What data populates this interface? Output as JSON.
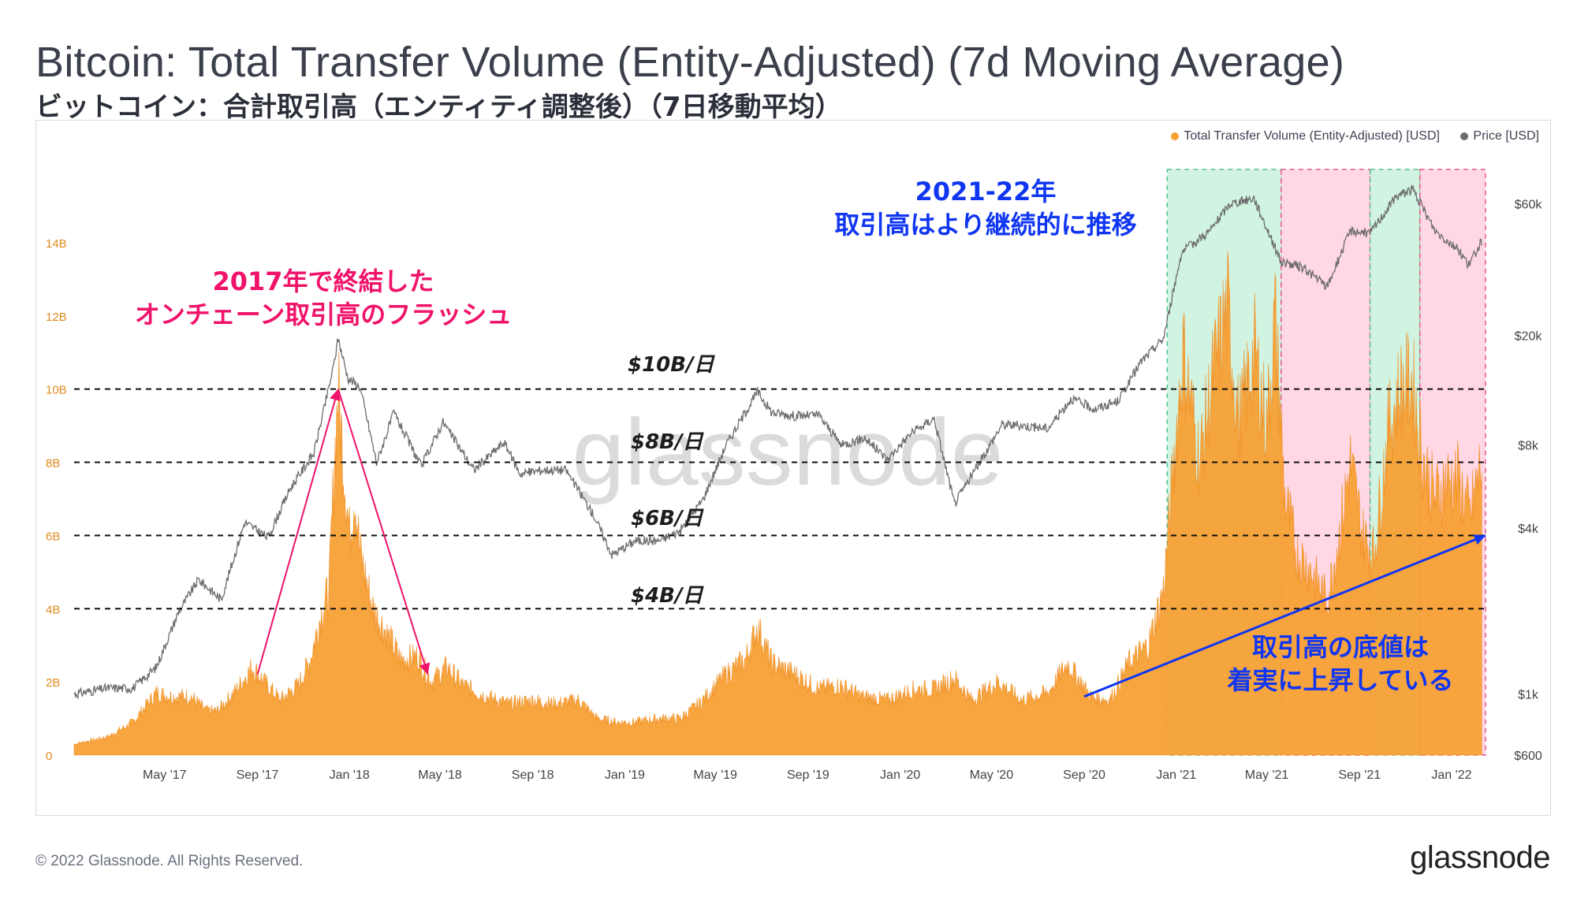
{
  "title": "Bitcoin: Total Transfer Volume (Entity-Adjusted) (7d Moving Average)",
  "subtitle": "ビットコイン：合計取引高（エンティティ調整後）（7日移動平均）",
  "legend": {
    "volume": "Total Transfer Volume (Entity-Adjusted) [USD]",
    "price": "Price [USD]"
  },
  "colors": {
    "volume": "#f7a035",
    "volume_highlight": "#f7862e",
    "price": "#6d6d6d",
    "green_band": "#c9f2dd",
    "pink_band": "#ffd0e0",
    "red_annotation": "#f0136a",
    "blue_annotation": "#1036f2"
  },
  "watermark": "glassnode",
  "annotations": {
    "flash_line1": "2017年で終結した",
    "flash_line2": "オンチェーン取引高のフラッシュ",
    "sustained_line1": "2021-22年",
    "sustained_line2": "取引高はより継続的に推移",
    "floor_line1": "取引高の底値は",
    "floor_line2": "着実に上昇している"
  },
  "levels": [
    {
      "value": 10,
      "label": "$10B/日"
    },
    {
      "value": 8,
      "label": "$8B/日"
    },
    {
      "value": 6,
      "label": "$6B/日"
    },
    {
      "value": 4,
      "label": "$4B/日"
    }
  ],
  "footer": {
    "copyright": "© 2022 Glassnode. All Rights Reserved.",
    "logo": "glassnode"
  },
  "chart_data": {
    "type": "area",
    "title": "Bitcoin: Total Transfer Volume (Entity-Adjusted) (7d Moving Average)",
    "x_range": [
      "2017-01-01",
      "2022-02-15"
    ],
    "x_ticks": [
      "May '17",
      "Sep '17",
      "Jan '18",
      "May '18",
      "Sep '18",
      "Jan '19",
      "May '19",
      "Sep '19",
      "Jan '20",
      "May '20",
      "Sep '20",
      "Jan '21",
      "May '21",
      "Sep '21",
      "Jan '22"
    ],
    "y_left": {
      "unit": "USD",
      "ticks": [
        "0",
        "2B",
        "4B",
        "6B",
        "8B",
        "10B",
        "12B",
        "14B"
      ],
      "range": [
        0,
        16
      ]
    },
    "y_right": {
      "unit": "USD",
      "scale": "log",
      "ticks": [
        "$600",
        "$1k",
        "$4k",
        "$8k",
        "$20k",
        "$60k"
      ],
      "range": [
        600,
        80000
      ]
    },
    "series": [
      {
        "name": "Total Transfer Volume (Entity-Adjusted) [USD]",
        "axis": "left",
        "units": "billion USD",
        "points": [
          [
            "2017-01-01",
            0.3
          ],
          [
            "2017-02-15",
            0.5
          ],
          [
            "2017-03-20",
            0.9
          ],
          [
            "2017-04-20",
            1.7
          ],
          [
            "2017-05-10",
            1.6
          ],
          [
            "2017-06-05",
            1.6
          ],
          [
            "2017-06-25",
            1.2
          ],
          [
            "2017-07-10",
            1.2
          ],
          [
            "2017-08-05",
            1.8
          ],
          [
            "2017-08-25",
            2.4
          ],
          [
            "2017-09-10",
            2.0
          ],
          [
            "2017-10-01",
            1.5
          ],
          [
            "2017-10-25",
            1.9
          ],
          [
            "2017-11-10",
            2.6
          ],
          [
            "2017-11-25",
            3.9
          ],
          [
            "2017-12-05",
            4.5
          ],
          [
            "2017-12-12",
            8.0
          ],
          [
            "2017-12-17",
            10.0
          ],
          [
            "2017-12-24",
            8.0
          ],
          [
            "2018-01-01",
            6.0
          ],
          [
            "2018-01-08",
            7.2
          ],
          [
            "2018-01-15",
            5.5
          ],
          [
            "2018-02-01",
            4.0
          ],
          [
            "2018-02-20",
            3.3
          ],
          [
            "2018-03-10",
            2.6
          ],
          [
            "2018-04-01",
            2.7
          ],
          [
            "2018-04-20",
            2.0
          ],
          [
            "2018-05-10",
            2.4
          ],
          [
            "2018-06-01",
            1.9
          ],
          [
            "2018-07-01",
            1.6
          ],
          [
            "2018-08-01",
            1.4
          ],
          [
            "2018-09-01",
            1.5
          ],
          [
            "2018-10-01",
            1.4
          ],
          [
            "2018-11-01",
            1.5
          ],
          [
            "2018-11-25",
            1.0
          ],
          [
            "2018-12-20",
            0.9
          ],
          [
            "2019-01-15",
            0.9
          ],
          [
            "2019-02-15",
            1.0
          ],
          [
            "2019-03-15",
            1.0
          ],
          [
            "2019-04-10",
            1.4
          ],
          [
            "2019-05-15",
            2.2
          ],
          [
            "2019-06-10",
            2.6
          ],
          [
            "2019-06-26",
            3.5
          ],
          [
            "2019-07-15",
            2.5
          ],
          [
            "2019-08-15",
            2.2
          ],
          [
            "2019-09-15",
            1.8
          ],
          [
            "2019-10-15",
            1.9
          ],
          [
            "2019-11-10",
            1.6
          ],
          [
            "2019-12-15",
            1.5
          ],
          [
            "2020-01-20",
            1.8
          ],
          [
            "2020-02-15",
            1.8
          ],
          [
            "2020-03-13",
            2.1
          ],
          [
            "2020-04-05",
            1.5
          ],
          [
            "2020-05-10",
            2.0
          ],
          [
            "2020-06-10",
            1.5
          ],
          [
            "2020-07-15",
            1.7
          ],
          [
            "2020-08-10",
            2.5
          ],
          [
            "2020-09-10",
            1.6
          ],
          [
            "2020-10-05",
            1.5
          ],
          [
            "2020-10-30",
            2.5
          ],
          [
            "2020-11-25",
            3.0
          ],
          [
            "2020-12-15",
            4.5
          ],
          [
            "2021-01-10",
            11.0
          ],
          [
            "2021-02-01",
            8.0
          ],
          [
            "2021-02-20",
            10.5
          ],
          [
            "2021-03-10",
            12.2
          ],
          [
            "2021-03-25",
            9.0
          ],
          [
            "2021-04-15",
            11.0
          ],
          [
            "2021-05-01",
            9.0
          ],
          [
            "2021-05-12",
            12.0
          ],
          [
            "2021-05-25",
            7.0
          ],
          [
            "2021-06-10",
            5.5
          ],
          [
            "2021-06-30",
            5.0
          ],
          [
            "2021-07-20",
            4.2
          ],
          [
            "2021-08-05",
            6.0
          ],
          [
            "2021-08-20",
            8.0
          ],
          [
            "2021-09-05",
            6.0
          ],
          [
            "2021-09-20",
            5.5
          ],
          [
            "2021-10-10",
            9.0
          ],
          [
            "2021-10-25",
            10.0
          ],
          [
            "2021-11-10",
            10.2
          ],
          [
            "2021-11-25",
            8.0
          ],
          [
            "2021-12-10",
            7.0
          ],
          [
            "2021-12-25",
            7.5
          ],
          [
            "2022-01-10",
            7.5
          ],
          [
            "2022-01-25",
            6.5
          ],
          [
            "2022-02-10",
            8.0
          ]
        ]
      },
      {
        "name": "Price [USD]",
        "axis": "right",
        "points": [
          [
            "2017-01-01",
            1000
          ],
          [
            "2017-02-15",
            1050
          ],
          [
            "2017-03-20",
            1050
          ],
          [
            "2017-04-20",
            1250
          ],
          [
            "2017-05-20",
            2000
          ],
          [
            "2017-06-15",
            2600
          ],
          [
            "2017-07-15",
            2200
          ],
          [
            "2017-08-15",
            4200
          ],
          [
            "2017-09-15",
            3700
          ],
          [
            "2017-10-15",
            5600
          ],
          [
            "2017-11-15",
            7500
          ],
          [
            "2017-12-10",
            15000
          ],
          [
            "2017-12-17",
            19500
          ],
          [
            "2017-12-30",
            14000
          ],
          [
            "2018-01-15",
            13000
          ],
          [
            "2018-02-06",
            6900
          ],
          [
            "2018-03-01",
            10500
          ],
          [
            "2018-04-06",
            6700
          ],
          [
            "2018-05-05",
            9700
          ],
          [
            "2018-06-15",
            6500
          ],
          [
            "2018-07-25",
            8200
          ],
          [
            "2018-08-15",
            6300
          ],
          [
            "2018-09-15",
            6500
          ],
          [
            "2018-10-15",
            6500
          ],
          [
            "2018-11-20",
            4500
          ],
          [
            "2018-12-15",
            3200
          ],
          [
            "2019-01-15",
            3600
          ],
          [
            "2019-02-15",
            3600
          ],
          [
            "2019-03-15",
            3900
          ],
          [
            "2019-04-15",
            5100
          ],
          [
            "2019-05-15",
            8000
          ],
          [
            "2019-06-26",
            12500
          ],
          [
            "2019-07-15",
            10500
          ],
          [
            "2019-08-15",
            10200
          ],
          [
            "2019-09-15",
            10300
          ],
          [
            "2019-10-15",
            8000
          ],
          [
            "2019-11-15",
            8500
          ],
          [
            "2019-12-15",
            7100
          ],
          [
            "2020-01-15",
            8800
          ],
          [
            "2020-02-15",
            10000
          ],
          [
            "2020-03-13",
            4900
          ],
          [
            "2020-04-15",
            6900
          ],
          [
            "2020-05-15",
            9500
          ],
          [
            "2020-06-15",
            9400
          ],
          [
            "2020-07-15",
            9200
          ],
          [
            "2020-08-15",
            11800
          ],
          [
            "2020-09-15",
            10800
          ],
          [
            "2020-10-15",
            11500
          ],
          [
            "2020-11-15",
            16000
          ],
          [
            "2020-12-15",
            19500
          ],
          [
            "2021-01-08",
            40000
          ],
          [
            "2021-02-15",
            48000
          ],
          [
            "2021-03-13",
            60000
          ],
          [
            "2021-04-14",
            63000
          ],
          [
            "2021-05-20",
            37000
          ],
          [
            "2021-06-20",
            35000
          ],
          [
            "2021-07-20",
            30000
          ],
          [
            "2021-08-20",
            48000
          ],
          [
            "2021-09-15",
            47000
          ],
          [
            "2021-10-20",
            64000
          ],
          [
            "2021-11-10",
            68000
          ],
          [
            "2021-12-10",
            48000
          ],
          [
            "2022-01-10",
            41000
          ],
          [
            "2022-01-24",
            36000
          ],
          [
            "2022-02-10",
            44000
          ]
        ]
      }
    ],
    "shaded_regions": [
      {
        "start": "2020-12-20",
        "end": "2021-05-20",
        "color": "green"
      },
      {
        "start": "2021-05-20",
        "end": "2021-09-15",
        "color": "pink"
      },
      {
        "start": "2021-09-15",
        "end": "2021-11-20",
        "color": "green"
      },
      {
        "start": "2021-11-20",
        "end": "2022-02-15",
        "color": "pink"
      }
    ],
    "arrows": [
      {
        "color": "red",
        "from": [
          "2017-09-01",
          2.2
        ],
        "to": [
          "2017-12-17",
          10.0
        ]
      },
      {
        "color": "red",
        "from": [
          "2017-12-17",
          10.0
        ],
        "to": [
          "2018-04-15",
          2.2
        ]
      },
      {
        "color": "blue",
        "from": [
          "2020-09-01",
          1.6
        ],
        "to": [
          "2022-02-15",
          6.0
        ]
      }
    ],
    "grid": false,
    "legend_position": "top-right"
  }
}
